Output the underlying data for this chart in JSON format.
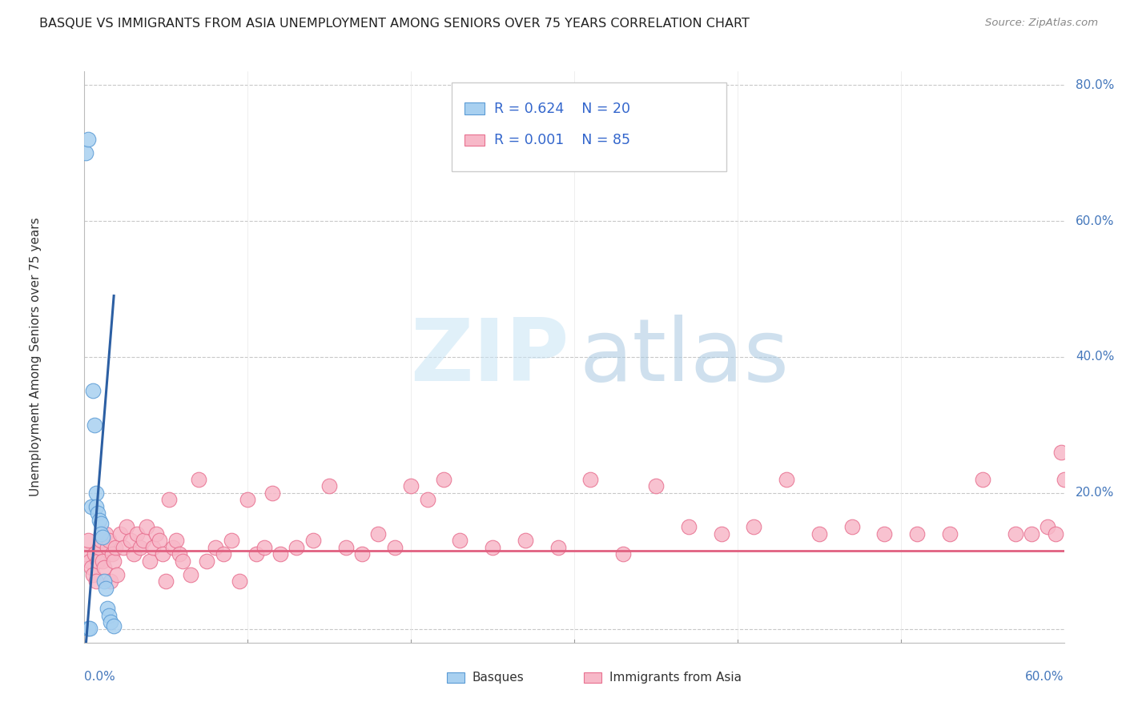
{
  "title": "BASQUE VS IMMIGRANTS FROM ASIA UNEMPLOYMENT AMONG SENIORS OVER 75 YEARS CORRELATION CHART",
  "source": "Source: ZipAtlas.com",
  "ylabel": "Unemployment Among Seniors over 75 years",
  "xmin": 0.0,
  "xmax": 0.6,
  "ymin": -0.02,
  "ymax": 0.82,
  "yticks": [
    0.0,
    0.2,
    0.4,
    0.6,
    0.8
  ],
  "ytick_labels": [
    "",
    "20.0%",
    "40.0%",
    "60.0%",
    "80.0%"
  ],
  "xticks": [
    0.1,
    0.2,
    0.3,
    0.4,
    0.5
  ],
  "basque_color": "#a8d0f0",
  "basque_edge_color": "#5b9bd5",
  "asia_color": "#f7b8c8",
  "asia_edge_color": "#e87090",
  "basque_R": 0.624,
  "basque_N": 20,
  "asia_R": 0.001,
  "asia_N": 85,
  "basque_line_color": "#2c5fa3",
  "asia_line_color": "#e06080",
  "basque_x": [
    0.001,
    0.002,
    0.002,
    0.003,
    0.004,
    0.005,
    0.006,
    0.007,
    0.007,
    0.008,
    0.009,
    0.01,
    0.01,
    0.011,
    0.012,
    0.013,
    0.014,
    0.015,
    0.016,
    0.018
  ],
  "basque_y": [
    0.7,
    0.72,
    0.001,
    0.001,
    0.18,
    0.35,
    0.3,
    0.2,
    0.18,
    0.17,
    0.16,
    0.155,
    0.14,
    0.135,
    0.07,
    0.06,
    0.03,
    0.02,
    0.01,
    0.005
  ],
  "asia_x": [
    0.001,
    0.002,
    0.003,
    0.004,
    0.005,
    0.006,
    0.007,
    0.008,
    0.009,
    0.01,
    0.011,
    0.012,
    0.013,
    0.014,
    0.015,
    0.016,
    0.017,
    0.018,
    0.019,
    0.02,
    0.022,
    0.024,
    0.026,
    0.028,
    0.03,
    0.032,
    0.034,
    0.036,
    0.038,
    0.04,
    0.042,
    0.044,
    0.046,
    0.048,
    0.05,
    0.052,
    0.054,
    0.056,
    0.058,
    0.06,
    0.065,
    0.07,
    0.075,
    0.08,
    0.085,
    0.09,
    0.095,
    0.1,
    0.105,
    0.11,
    0.115,
    0.12,
    0.13,
    0.14,
    0.15,
    0.16,
    0.17,
    0.18,
    0.19,
    0.2,
    0.21,
    0.22,
    0.23,
    0.25,
    0.27,
    0.29,
    0.31,
    0.33,
    0.35,
    0.37,
    0.39,
    0.41,
    0.43,
    0.45,
    0.47,
    0.49,
    0.51,
    0.53,
    0.55,
    0.57,
    0.58,
    0.59,
    0.595,
    0.598,
    0.6
  ],
  "asia_y": [
    0.11,
    0.13,
    0.1,
    0.09,
    0.08,
    0.11,
    0.07,
    0.1,
    0.12,
    0.13,
    0.1,
    0.09,
    0.14,
    0.12,
    0.13,
    0.07,
    0.11,
    0.1,
    0.12,
    0.08,
    0.14,
    0.12,
    0.15,
    0.13,
    0.11,
    0.14,
    0.12,
    0.13,
    0.15,
    0.1,
    0.12,
    0.14,
    0.13,
    0.11,
    0.07,
    0.19,
    0.12,
    0.13,
    0.11,
    0.1,
    0.08,
    0.22,
    0.1,
    0.12,
    0.11,
    0.13,
    0.07,
    0.19,
    0.11,
    0.12,
    0.2,
    0.11,
    0.12,
    0.13,
    0.21,
    0.12,
    0.11,
    0.14,
    0.12,
    0.21,
    0.19,
    0.22,
    0.13,
    0.12,
    0.13,
    0.12,
    0.22,
    0.11,
    0.21,
    0.15,
    0.14,
    0.15,
    0.22,
    0.14,
    0.15,
    0.14,
    0.14,
    0.14,
    0.22,
    0.14,
    0.14,
    0.15,
    0.14,
    0.26,
    0.22
  ],
  "basque_trend_x": [
    0.0,
    0.002,
    0.004,
    0.006,
    0.008,
    0.01,
    0.012,
    0.014,
    0.016,
    0.018
  ],
  "basque_trend_slope": 30.0,
  "basque_trend_intercept": -0.05,
  "asia_trend_y": 0.115,
  "legend_R1": "R = 0.624",
  "legend_N1": "N = 20",
  "legend_R2": "R = 0.001",
  "legend_N2": "N = 85"
}
